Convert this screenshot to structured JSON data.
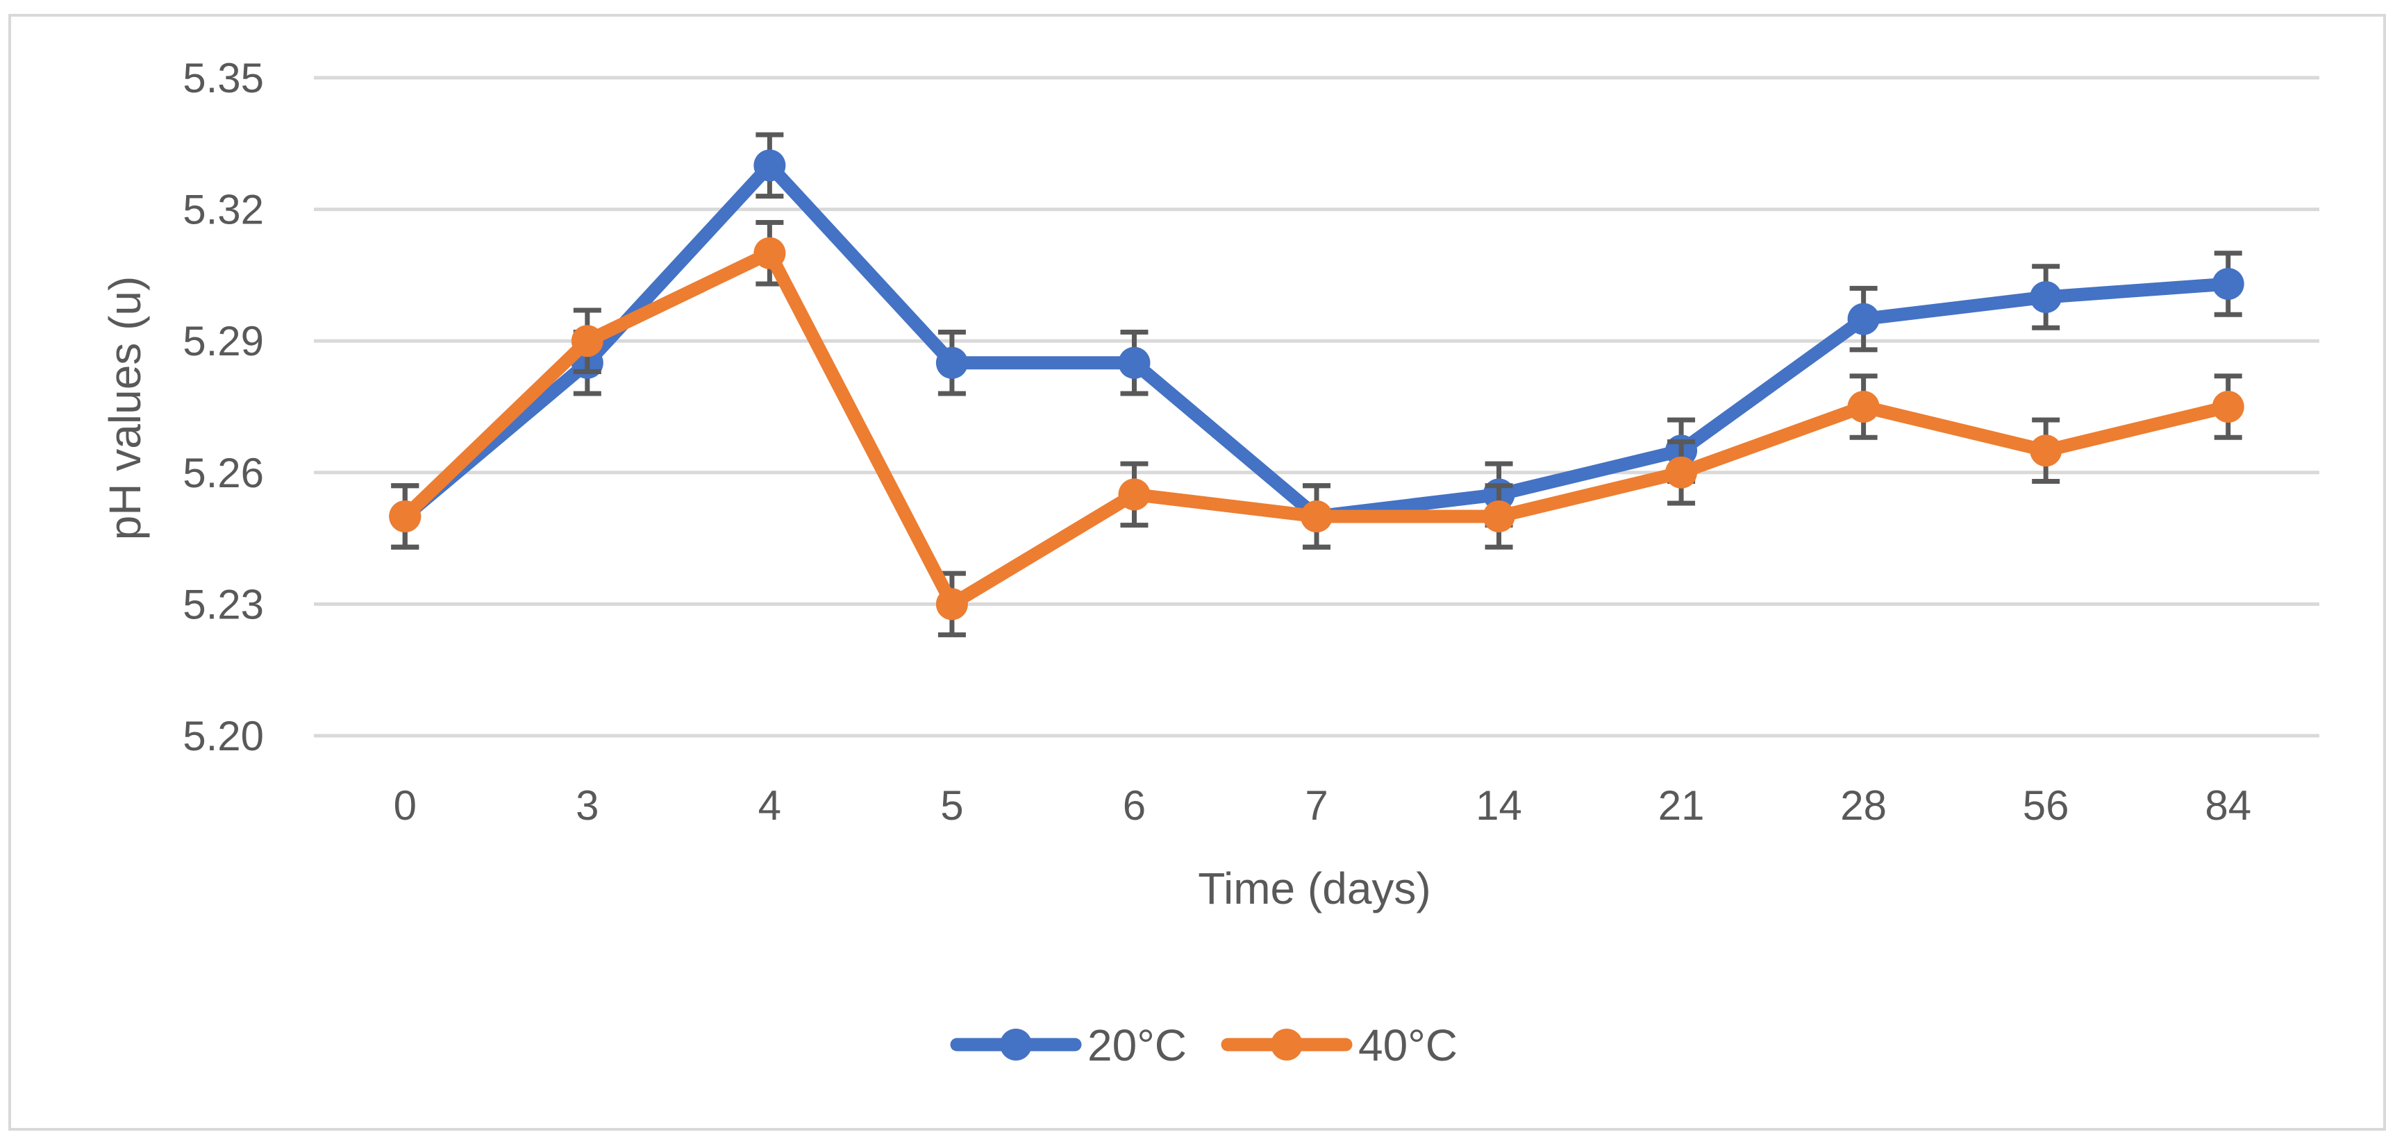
{
  "chart_data": {
    "type": "line",
    "title": "",
    "xlabel": "Time (days)",
    "ylabel": "pH values (u)",
    "categories": [
      "0",
      "3",
      "4",
      "5",
      "6",
      "7",
      "14",
      "21",
      "28",
      "56",
      "84"
    ],
    "ylim": [
      5.2,
      5.35
    ],
    "yticks": [
      "5.20",
      "5.23",
      "5.26",
      "5.29",
      "5.32",
      "5.35"
    ],
    "grid": true,
    "legend_position": "bottom",
    "error_bar": 0.007,
    "series": [
      {
        "name": "20°C",
        "color": "#4472c4",
        "values": [
          5.25,
          5.285,
          5.33,
          5.285,
          5.285,
          5.25,
          5.255,
          5.265,
          5.295,
          5.3,
          5.303
        ]
      },
      {
        "name": "40°C",
        "color": "#ed7d31",
        "values": [
          5.25,
          5.29,
          5.31,
          5.23,
          5.255,
          5.25,
          5.25,
          5.26,
          5.275,
          5.265,
          5.275
        ]
      }
    ]
  },
  "colors": {
    "grid": "#d9d9d9",
    "frame": "#d9d9d9",
    "error_bar": "#595959"
  }
}
